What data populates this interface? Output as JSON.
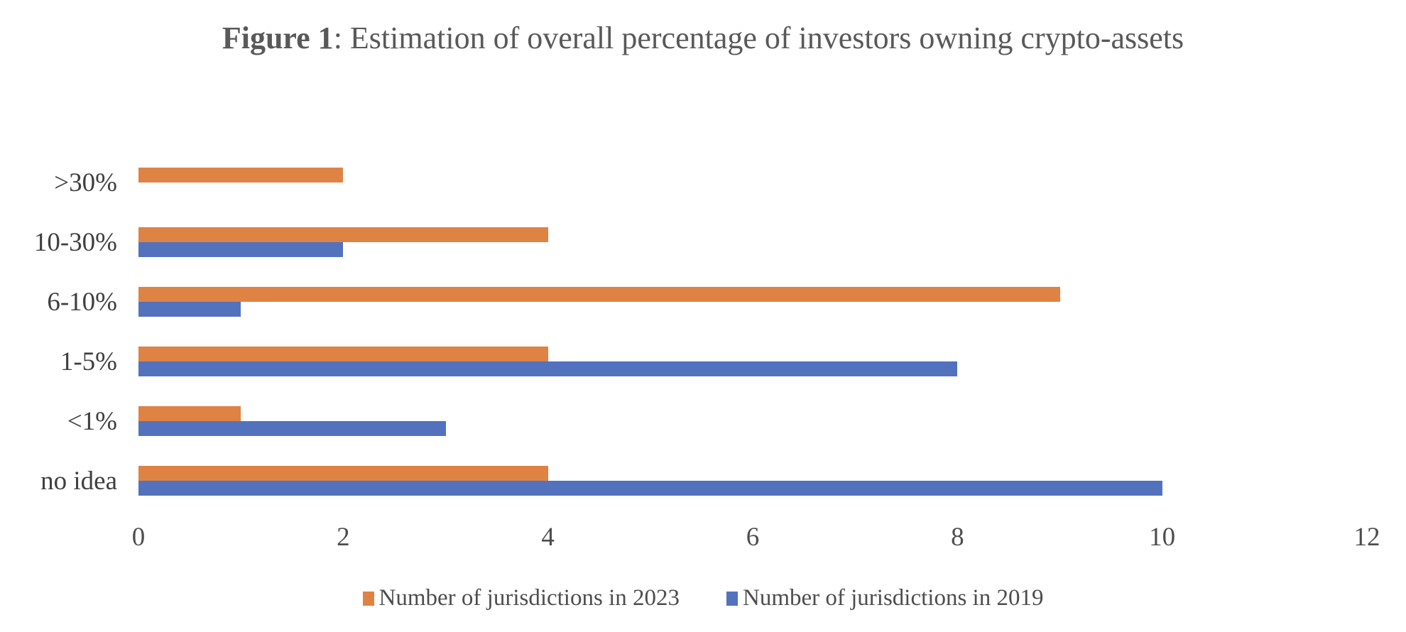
{
  "title": {
    "prefix": "Figure 1",
    "rest": ": Estimation of overall percentage of investors owning crypto-assets"
  },
  "chart_data": {
    "type": "bar",
    "orientation": "horizontal",
    "title": "Figure 1: Estimation of overall percentage of investors owning crypto-assets",
    "categories": [
      ">30%",
      "10-30%",
      "6-10%",
      "1-5%",
      "<1%",
      "no idea"
    ],
    "series": [
      {
        "name": "Number of jurisdictions in 2023",
        "color": "#de8344",
        "values": [
          2,
          4,
          9,
          4,
          1,
          4
        ]
      },
      {
        "name": "Number of jurisdictions in 2019",
        "color": "#5272be",
        "values": [
          0,
          2,
          1,
          8,
          3,
          10
        ]
      }
    ],
    "xlim": [
      0,
      12
    ],
    "xticks": [
      "0",
      "2",
      "4",
      "6",
      "8",
      "10",
      "12"
    ],
    "xlabel": "",
    "ylabel": "",
    "grid": false,
    "legend_position": "bottom"
  },
  "colors": {
    "series_2023": "#de8344",
    "series_2019": "#5272be",
    "title_text": "#595959",
    "axis_text": "#4d4d4d",
    "category_text": "#3f3f3f",
    "background": "#ffffff"
  }
}
